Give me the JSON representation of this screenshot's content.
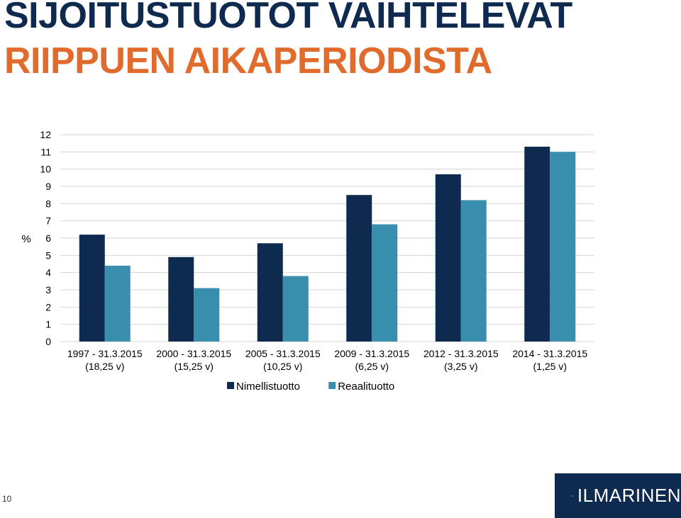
{
  "slide": {
    "title_line1": "SIJOITUSTUOTOT VAIHTELEVAT",
    "title_line2": "RIIPPUEN AIKAPERIODISTA",
    "page_number": "10"
  },
  "logo": {
    "text": "ILMARINEN",
    "icon": "ilmarinen-logo-icon"
  },
  "colors": {
    "title_dark": "#0e2a4f",
    "title_orange": "#e06b2c",
    "nimellis": "#0e2a4f",
    "reaali": "#3a8ead"
  },
  "chart_data": {
    "type": "bar",
    "title": "",
    "xlabel": "",
    "ylabel": "%",
    "ylim": [
      0,
      12
    ],
    "yticks": [
      0,
      1,
      2,
      3,
      4,
      5,
      6,
      7,
      8,
      9,
      10,
      11,
      12
    ],
    "grid": true,
    "legend_position": "bottom",
    "categories": [
      [
        "1997 - 31.3.2015",
        "(18,25 v)"
      ],
      [
        "2000 - 31.3.2015",
        "(15,25 v)"
      ],
      [
        "2005 - 31.3.2015",
        "(10,25 v)"
      ],
      [
        "2009 - 31.3.2015",
        "(6,25 v)"
      ],
      [
        "2012 - 31.3.2015",
        "(3,25 v)"
      ],
      [
        "2014 - 31.3.2015",
        "(1,25 v)"
      ]
    ],
    "series": [
      {
        "name": "Nimellistuotto",
        "color": "#0e2a4f",
        "values": [
          6.2,
          4.9,
          5.7,
          8.5,
          9.7,
          11.3
        ]
      },
      {
        "name": "Reaalituotto",
        "color": "#3a8ead",
        "values": [
          4.4,
          3.1,
          3.8,
          6.8,
          8.2,
          11.0
        ]
      }
    ]
  }
}
